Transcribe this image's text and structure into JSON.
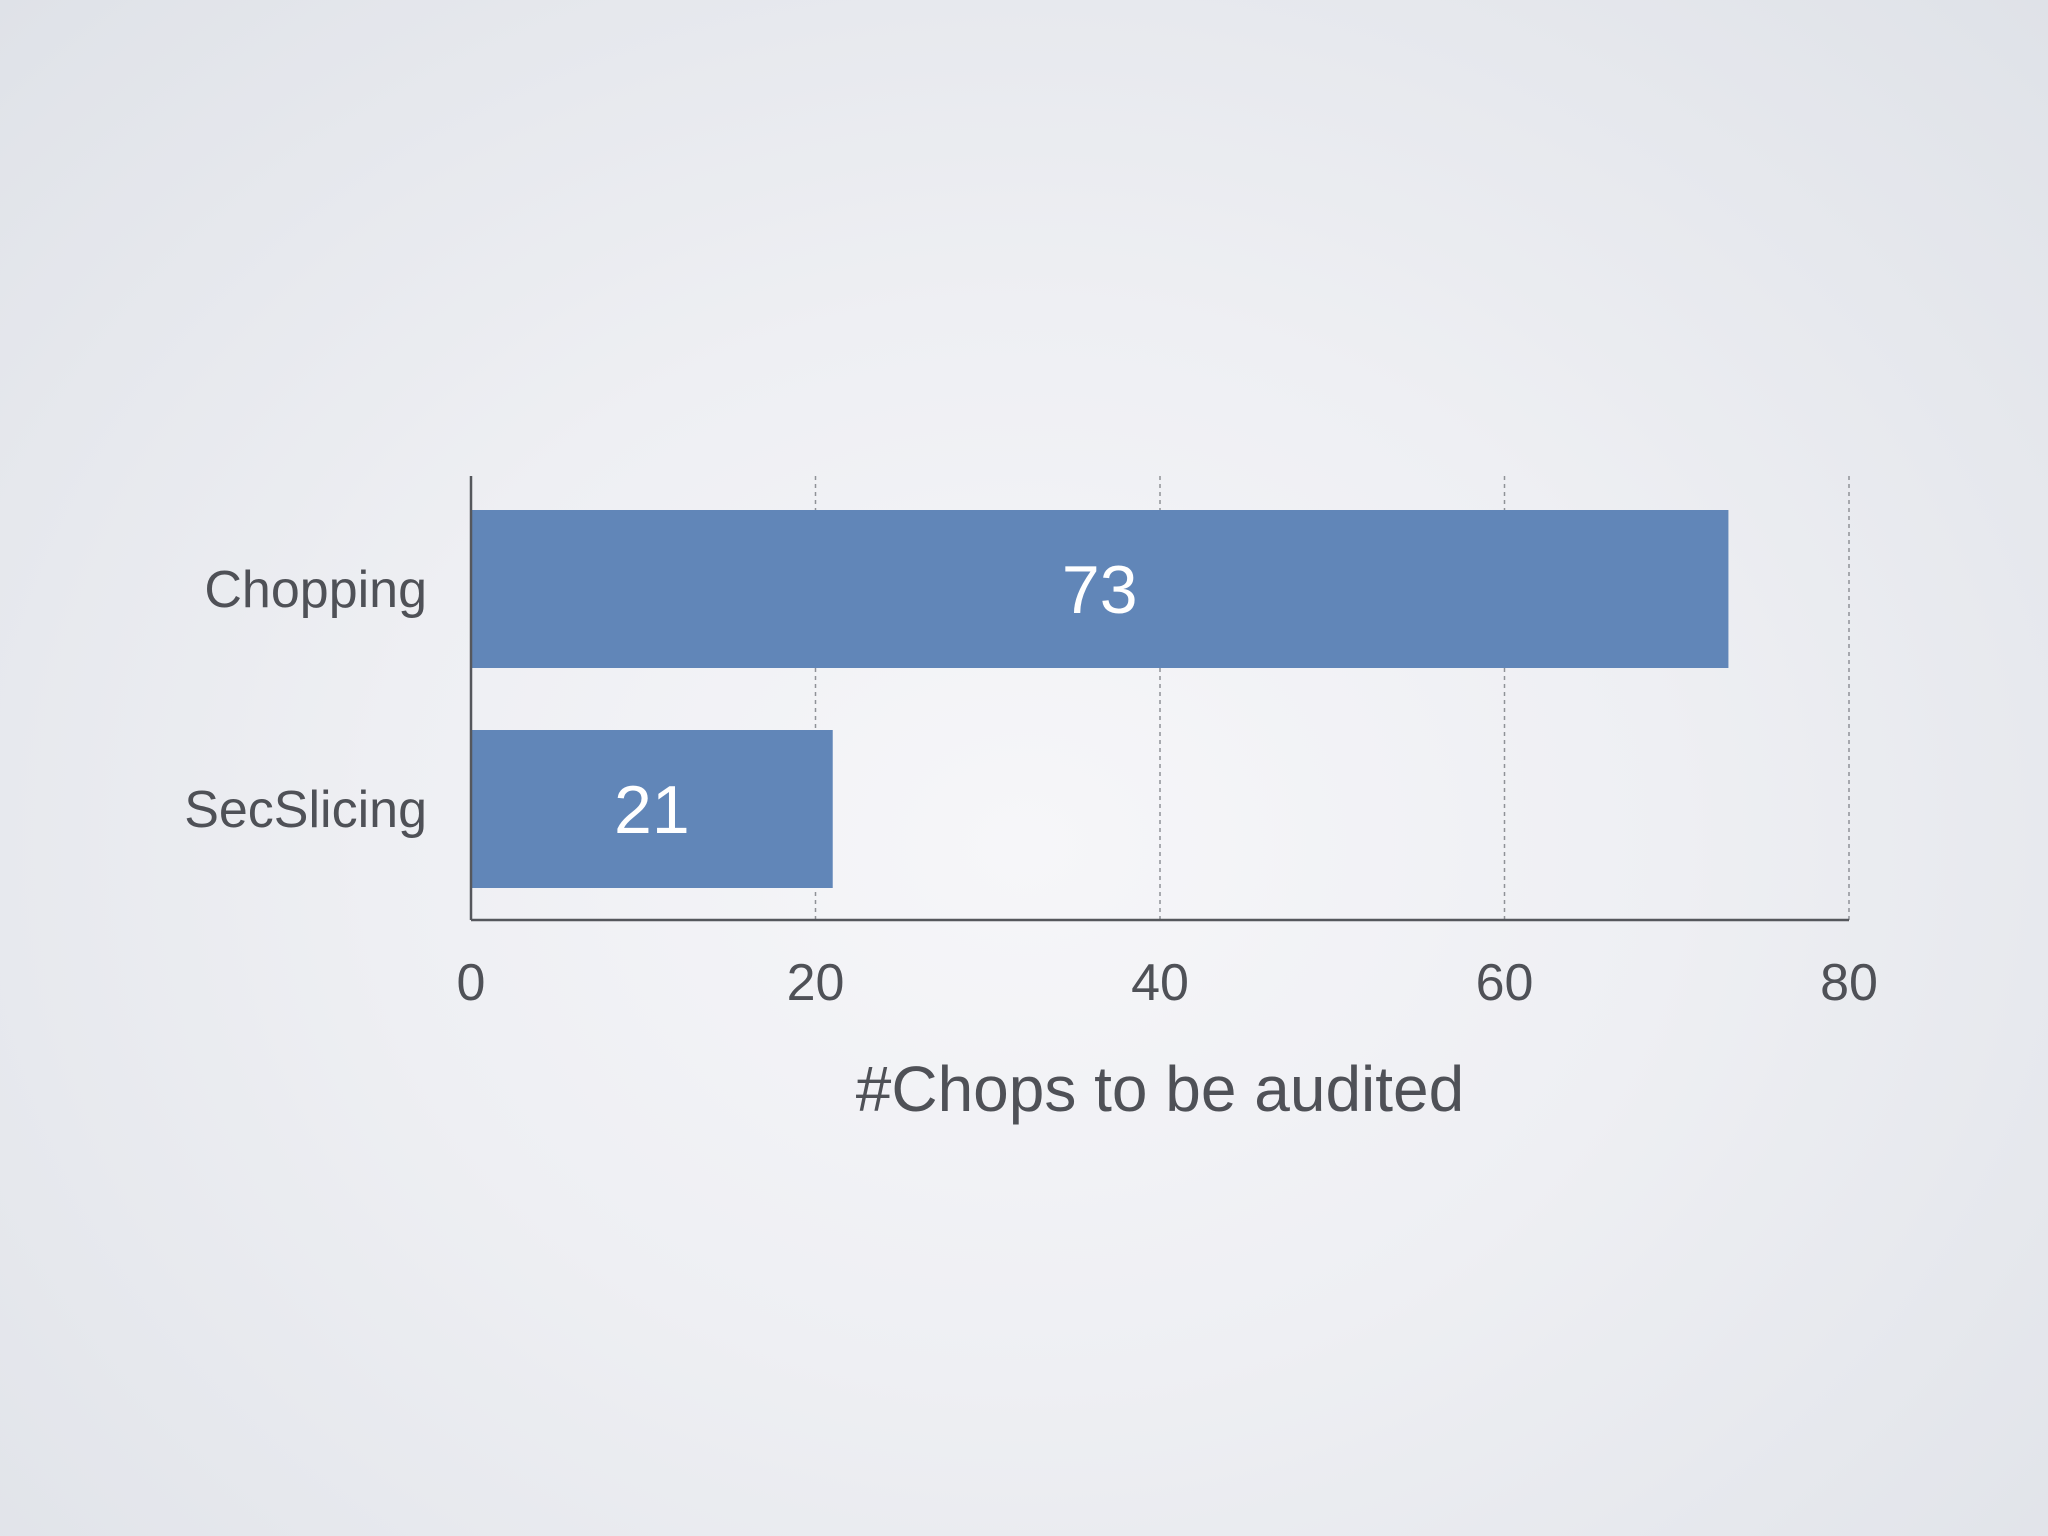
{
  "chart_data": {
    "type": "bar",
    "orientation": "horizontal",
    "categories": [
      "Chopping",
      "SecSlicing"
    ],
    "values": [
      73,
      21
    ],
    "data_labels": [
      "73",
      "21"
    ],
    "xlabel": "#Chops to be audited",
    "ylabel": "",
    "xlim": [
      0,
      80
    ],
    "x_ticks": [
      0,
      20,
      40,
      60,
      80
    ],
    "x_tick_labels": [
      "0",
      "20",
      "40",
      "60",
      "80"
    ],
    "grid": "vertical-dashed",
    "legend": "none",
    "colors": {
      "bar": "#6186b8",
      "axis": "#55575c",
      "grid": "#8f9297",
      "text": "#4f5157",
      "data_label": "#ffffff"
    }
  }
}
